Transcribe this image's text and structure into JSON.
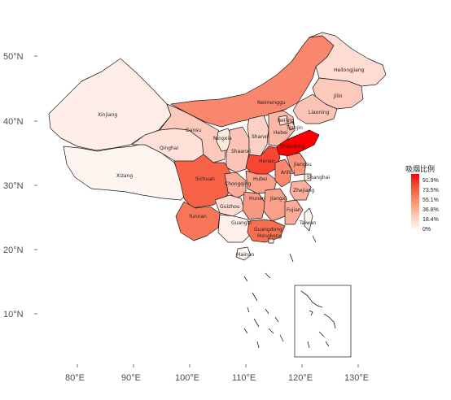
{
  "legend": {
    "title": "吸烟比例",
    "labels": [
      "91.9%",
      "73.5%",
      "55.1%",
      "36.8%",
      "18.4%",
      "0%"
    ],
    "color_low": "#fff5f0",
    "color_high": "#ff0000"
  },
  "axes": {
    "x_labels": [
      "80°E",
      "90°E",
      "100°E",
      "110°E",
      "120°E",
      "130°E"
    ],
    "y_labels": [
      "50°N",
      "40°N",
      "30°N",
      "20°N",
      "10°N"
    ]
  },
  "provinces": [
    {
      "name": "Xinjiang",
      "value": 0.03
    },
    {
      "name": "Xizang",
      "value": 0.0
    },
    {
      "name": "Qinghai",
      "value": 0.08
    },
    {
      "name": "Gansu",
      "value": 0.18
    },
    {
      "name": "Neimenggu",
      "value": 0.45
    },
    {
      "name": "Heilongjiang",
      "value": 0.1
    },
    {
      "name": "Jilin",
      "value": 0.18
    },
    {
      "name": "Liaoning",
      "value": 0.2
    },
    {
      "name": "Ningxia",
      "value": 0.05
    },
    {
      "name": "Shaanxi",
      "value": 0.2
    },
    {
      "name": "Shanxi",
      "value": 0.15
    },
    {
      "name": "Hebei",
      "value": 0.25
    },
    {
      "name": "Beijing",
      "value": 0.1
    },
    {
      "name": "Tianjin",
      "value": 0.15
    },
    {
      "name": "Shandong",
      "value": 1.0
    },
    {
      "name": "Henan",
      "value": 0.72
    },
    {
      "name": "Sichuan",
      "value": 0.6
    },
    {
      "name": "Chongqing",
      "value": 0.3
    },
    {
      "name": "Hubei",
      "value": 0.35
    },
    {
      "name": "Anhui",
      "value": 0.45
    },
    {
      "name": "Jiangsu",
      "value": 0.4
    },
    {
      "name": "Shanghai",
      "value": 0.05
    },
    {
      "name": "Zhejiang",
      "value": 0.28
    },
    {
      "name": "Yunnan",
      "value": 0.52
    },
    {
      "name": "Guizhou",
      "value": 0.1
    },
    {
      "name": "Hunan",
      "value": 0.38
    },
    {
      "name": "Jiangxi",
      "value": 0.35
    },
    {
      "name": "Fujian",
      "value": 0.3
    },
    {
      "name": "Guangxi",
      "value": 0.02
    },
    {
      "name": "Guangdong",
      "value": 0.55
    },
    {
      "name": "Hongkong",
      "value": 0.05
    },
    {
      "name": "Taiwan",
      "value": 0.0
    },
    {
      "name": "Hainan",
      "value": 0.0
    }
  ]
}
